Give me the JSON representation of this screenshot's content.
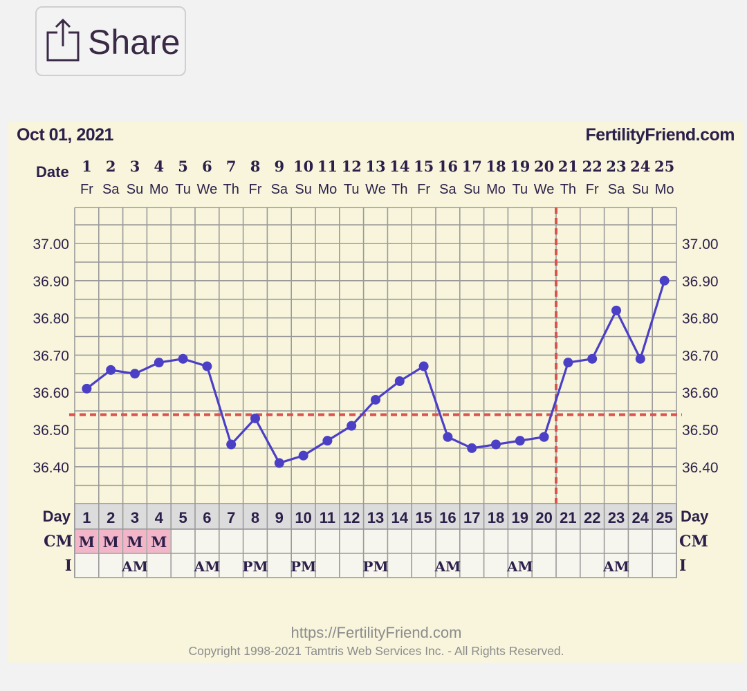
{
  "share": {
    "label": "Share",
    "icon": "share-icon"
  },
  "header": {
    "date_label": "Oct 01, 2021",
    "site": "FertilityFriend.com",
    "row_date_label": "Date"
  },
  "footer": {
    "url": "https://FertilityFriend.com",
    "copyright": "Copyright 1998-2021 Tamtris Web Services Inc. - All Rights Reserved."
  },
  "colors": {
    "panel": "#f8f5dc",
    "line": "#4b3fc6",
    "coverline": "#d9534f",
    "text": "#2c1f4a",
    "grid": "#9a9a9a",
    "cm_highlight": "#f3b6c9"
  },
  "chart_data": {
    "type": "line",
    "days": [
      "1",
      "2",
      "3",
      "4",
      "5",
      "6",
      "7",
      "8",
      "9",
      "10",
      "11",
      "12",
      "13",
      "14",
      "15",
      "16",
      "17",
      "18",
      "19",
      "20",
      "21",
      "22",
      "23",
      "24",
      "25"
    ],
    "weekdays": [
      "Fr",
      "Sa",
      "Su",
      "Mo",
      "Tu",
      "We",
      "Th",
      "Fr",
      "Sa",
      "Su",
      "Mo",
      "Tu",
      "We",
      "Th",
      "Fr",
      "Sa",
      "Su",
      "Mo",
      "Tu",
      "We",
      "Th",
      "Fr",
      "Sa",
      "Su",
      "Mo"
    ],
    "temperatures": [
      36.61,
      36.66,
      36.65,
      36.68,
      36.69,
      36.67,
      36.46,
      36.53,
      36.41,
      36.43,
      36.47,
      36.51,
      36.58,
      36.63,
      36.67,
      36.48,
      36.45,
      36.46,
      36.47,
      36.48,
      36.68,
      36.69,
      36.82,
      36.69,
      36.9
    ],
    "y_ticks": [
      "37.00",
      "36.90",
      "36.80",
      "36.70",
      "36.60",
      "36.50",
      "36.40"
    ],
    "y_tick_values": [
      37.0,
      36.9,
      36.8,
      36.7,
      36.6,
      36.5,
      36.4
    ],
    "ylim": [
      36.3,
      37.1
    ],
    "coverline": 36.54,
    "ovulation_day": 20,
    "grid": true,
    "row_labels": {
      "day": "Day",
      "cm": "CM",
      "i": "I"
    },
    "cm": [
      "M",
      "M",
      "M",
      "M",
      "",
      "",
      "",
      "",
      "",
      "",
      "",
      "",
      "",
      "",
      "",
      "",
      "",
      "",
      "",
      "",
      "",
      "",
      "",
      "",
      ""
    ],
    "intercourse": [
      "",
      "",
      "AM",
      "",
      "",
      "AM",
      "",
      "PM",
      "",
      "PM",
      "",
      "",
      "PM",
      "",
      "",
      "AM",
      "",
      "",
      "AM",
      "",
      "",
      "",
      "AM",
      "",
      ""
    ]
  }
}
